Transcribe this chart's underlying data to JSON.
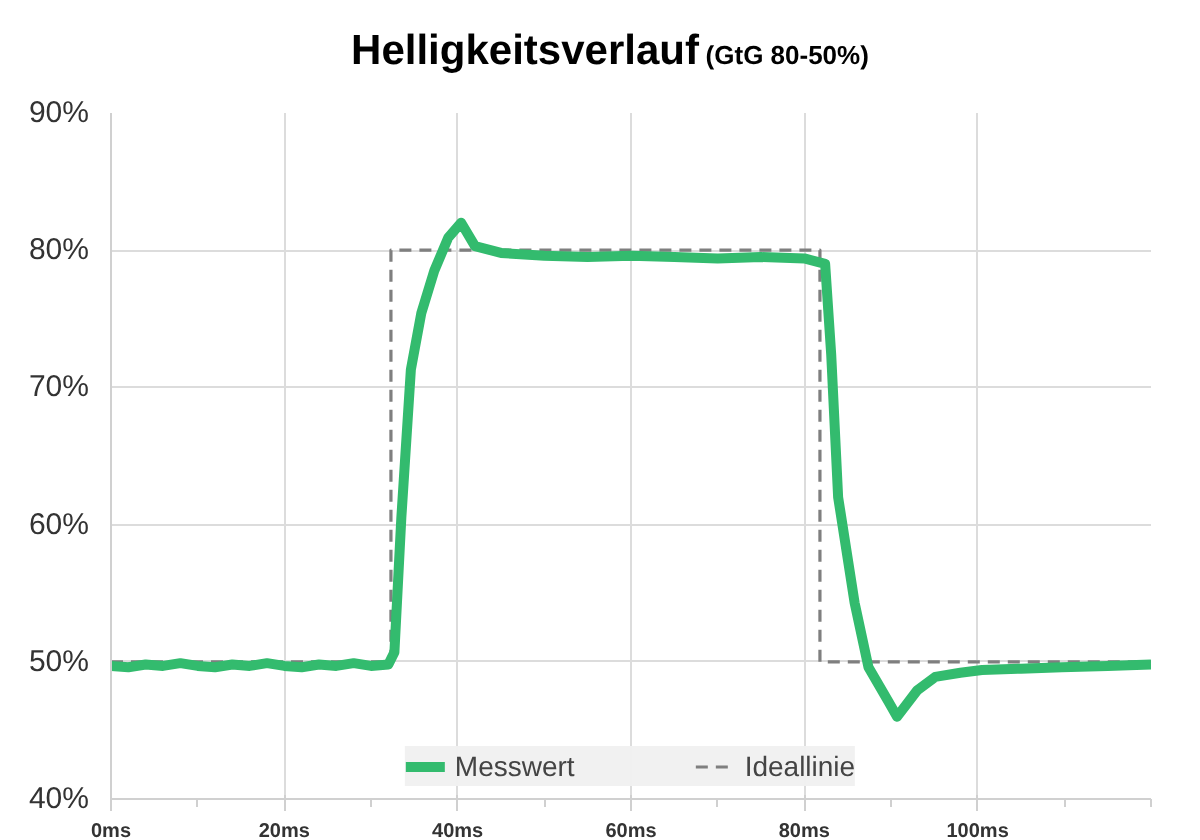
{
  "chart_data": {
    "type": "line",
    "title": "Helligkeitsverlauf",
    "subtitle": "(GtG 80-50%)",
    "xlim": [
      0,
      120
    ],
    "ylim": [
      40,
      90
    ],
    "xticks": [
      {
        "value": 0,
        "label": "0ms"
      },
      {
        "value": 10,
        "label": null
      },
      {
        "value": 20,
        "label": "20ms"
      },
      {
        "value": 30,
        "label": null
      },
      {
        "value": 40,
        "label": "40ms"
      },
      {
        "value": 50,
        "label": null
      },
      {
        "value": 60,
        "label": "60ms"
      },
      {
        "value": 70,
        "label": null
      },
      {
        "value": 80,
        "label": "80ms"
      },
      {
        "value": 90,
        "label": null
      },
      {
        "value": 100,
        "label": "100ms"
      },
      {
        "value": 110,
        "label": null
      },
      {
        "value": 120,
        "label": null
      }
    ],
    "yticks": [
      {
        "value": 40,
        "label": "40%"
      },
      {
        "value": 50,
        "label": "50%"
      },
      {
        "value": 60,
        "label": "60%"
      },
      {
        "value": 70,
        "label": "70%"
      },
      {
        "value": 80,
        "label": "80%"
      },
      {
        "value": 90,
        "label": "90%"
      }
    ],
    "grid": true,
    "legend": "bottom",
    "marker": "none",
    "series": [
      {
        "name": "Messwert",
        "color": "#33bb6e",
        "line_style": "solid",
        "x": [
          0,
          2,
          4,
          6,
          8,
          10,
          12,
          14,
          16,
          18,
          20,
          22,
          24,
          26,
          28,
          30,
          32,
          32.7,
          33.5,
          34.6,
          35.8,
          37.3,
          38.9,
          40.4,
          42.0,
          45,
          50,
          55,
          60,
          65,
          70,
          75,
          80,
          82.4,
          83.1,
          83.9,
          85.8,
          87.4,
          89.7,
          90.7,
          93,
          95.1,
          98,
          100.5,
          105,
          109.7,
          115,
          120
        ],
        "values": [
          49.7,
          49.6,
          49.8,
          49.7,
          49.9,
          49.7,
          49.6,
          49.8,
          49.7,
          49.9,
          49.7,
          49.6,
          49.8,
          49.7,
          49.9,
          49.7,
          49.8,
          50.7,
          60.5,
          71.3,
          75.4,
          78.5,
          80.9,
          82.0,
          80.3,
          79.8,
          79.6,
          79.5,
          79.6,
          79.5,
          79.4,
          79.5,
          79.4,
          79.0,
          72.4,
          62.0,
          54.3,
          49.6,
          47.1,
          46.0,
          47.9,
          48.9,
          49.2,
          49.4,
          49.5,
          49.6,
          49.7,
          49.8
        ]
      },
      {
        "name": "Ideallinie",
        "color": "#7f7f7f",
        "line_style": "dashed",
        "x": [
          0,
          32.3,
          32.3,
          81.8,
          81.8,
          120
        ],
        "values": [
          50,
          50,
          80,
          80,
          50,
          50
        ]
      }
    ]
  }
}
